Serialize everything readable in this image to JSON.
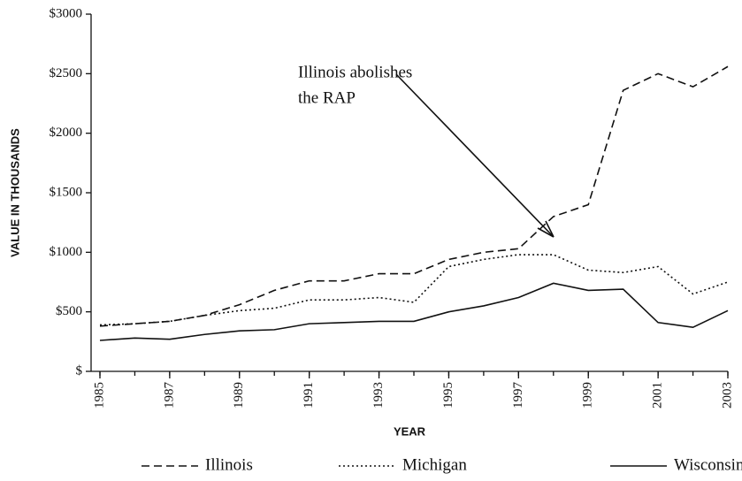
{
  "chart_data": {
    "type": "line",
    "x": [
      1985,
      1986,
      1987,
      1988,
      1989,
      1990,
      1991,
      1992,
      1993,
      1994,
      1995,
      1996,
      1997,
      1998,
      1999,
      2000,
      2001,
      2002,
      2003
    ],
    "series": [
      {
        "name": "Illinois",
        "color": "#111111",
        "style": "dashed",
        "values": [
          380,
          400,
          420,
          470,
          560,
          680,
          760,
          760,
          820,
          820,
          940,
          1000,
          1030,
          1300,
          1400,
          2360,
          2500,
          2390,
          2560
        ]
      },
      {
        "name": "Michigan",
        "color": "#111111",
        "style": "dotted",
        "values": [
          390,
          400,
          420,
          470,
          510,
          530,
          600,
          600,
          620,
          580,
          880,
          940,
          980,
          980,
          850,
          830,
          880,
          650,
          750
        ]
      },
      {
        "name": "Wisconsin",
        "color": "#111111",
        "style": "solid",
        "values": [
          260,
          280,
          270,
          310,
          340,
          350,
          400,
          410,
          420,
          420,
          500,
          550,
          620,
          740,
          680,
          690,
          410,
          370,
          510
        ]
      }
    ],
    "xlim": [
      1985,
      2003
    ],
    "xticks": [
      1985,
      1987,
      1989,
      1991,
      1993,
      1995,
      1997,
      1999,
      2001,
      2003
    ],
    "ylim": [
      0,
      3000
    ],
    "yticks": [
      {
        "value": 0,
        "label": "$"
      },
      {
        "value": 500,
        "label": "$500"
      },
      {
        "value": 1000,
        "label": "$1000"
      },
      {
        "value": 1500,
        "label": "$1500"
      },
      {
        "value": 2000,
        "label": "$2000"
      },
      {
        "value": 2500,
        "label": "$2500"
      },
      {
        "value": 3000,
        "label": "$3000"
      }
    ],
    "x_label": "YEAR",
    "y_label": "VALUE IN THOUSANDS",
    "annotation": [
      "Illinois abolishes",
      "the RAP"
    ],
    "grid": false,
    "legend": "bottom"
  }
}
